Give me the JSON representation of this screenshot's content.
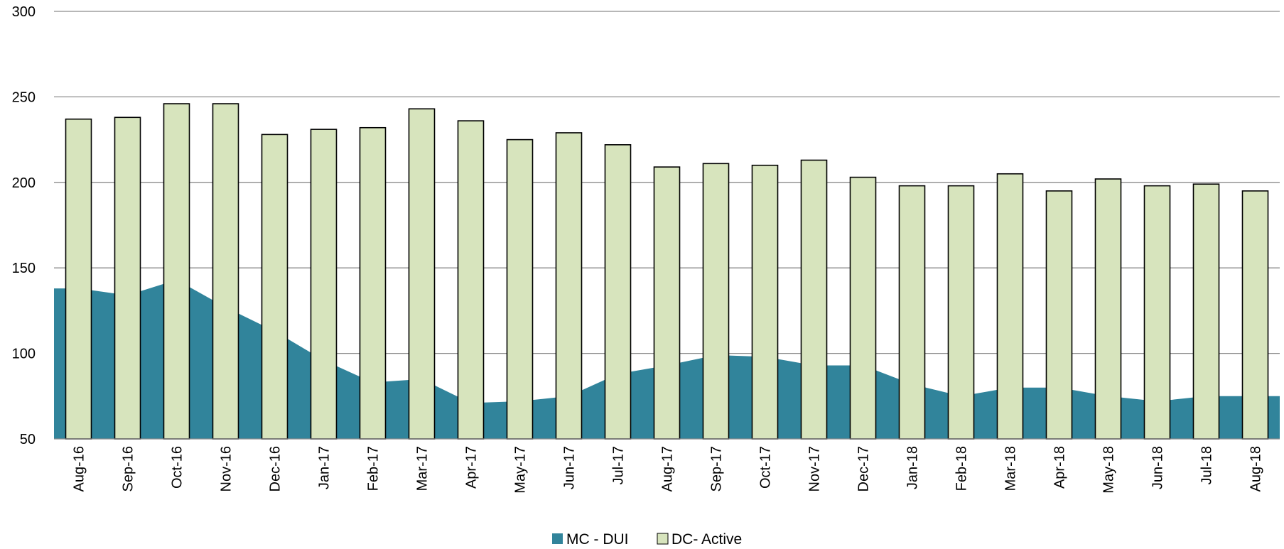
{
  "chart_data": {
    "type": "bar",
    "categories": [
      "Aug-16",
      "Sep-16",
      "Oct-16",
      "Nov-16",
      "Dec-16",
      "Jan-17",
      "Feb-17",
      "Mar-17",
      "Apr-17",
      "May-17",
      "Jun-17",
      "Jul-17",
      "Aug-17",
      "Sep-17",
      "Oct-17",
      "Nov-17",
      "Dec-17",
      "Jan-18",
      "Feb-18",
      "Mar-18",
      "Apr-18",
      "May-18",
      "Jun-18",
      "Jul-18",
      "Aug-18"
    ],
    "series": [
      {
        "name": "MC - DUI",
        "type": "area",
        "color": "#31849b",
        "values": [
          138,
          134,
          143,
          127,
          113,
          96,
          83,
          85,
          71,
          72,
          75,
          88,
          93,
          99,
          98,
          93,
          93,
          82,
          75,
          80,
          80,
          75,
          72,
          75,
          75
        ]
      },
      {
        "name": "DC- Active",
        "type": "bar",
        "color": "#d7e4bd",
        "values": [
          237,
          238,
          246,
          246,
          228,
          231,
          232,
          243,
          236,
          225,
          229,
          222,
          209,
          211,
          210,
          213,
          203,
          198,
          198,
          205,
          195,
          202,
          198,
          199,
          195
        ]
      }
    ],
    "yticks": [
      "50",
      "100",
      "150",
      "200",
      "250",
      "300"
    ],
    "ylim": [
      50,
      300
    ],
    "grid": true,
    "legend": "bottom",
    "title": "",
    "xlabel": "",
    "ylabel": ""
  }
}
